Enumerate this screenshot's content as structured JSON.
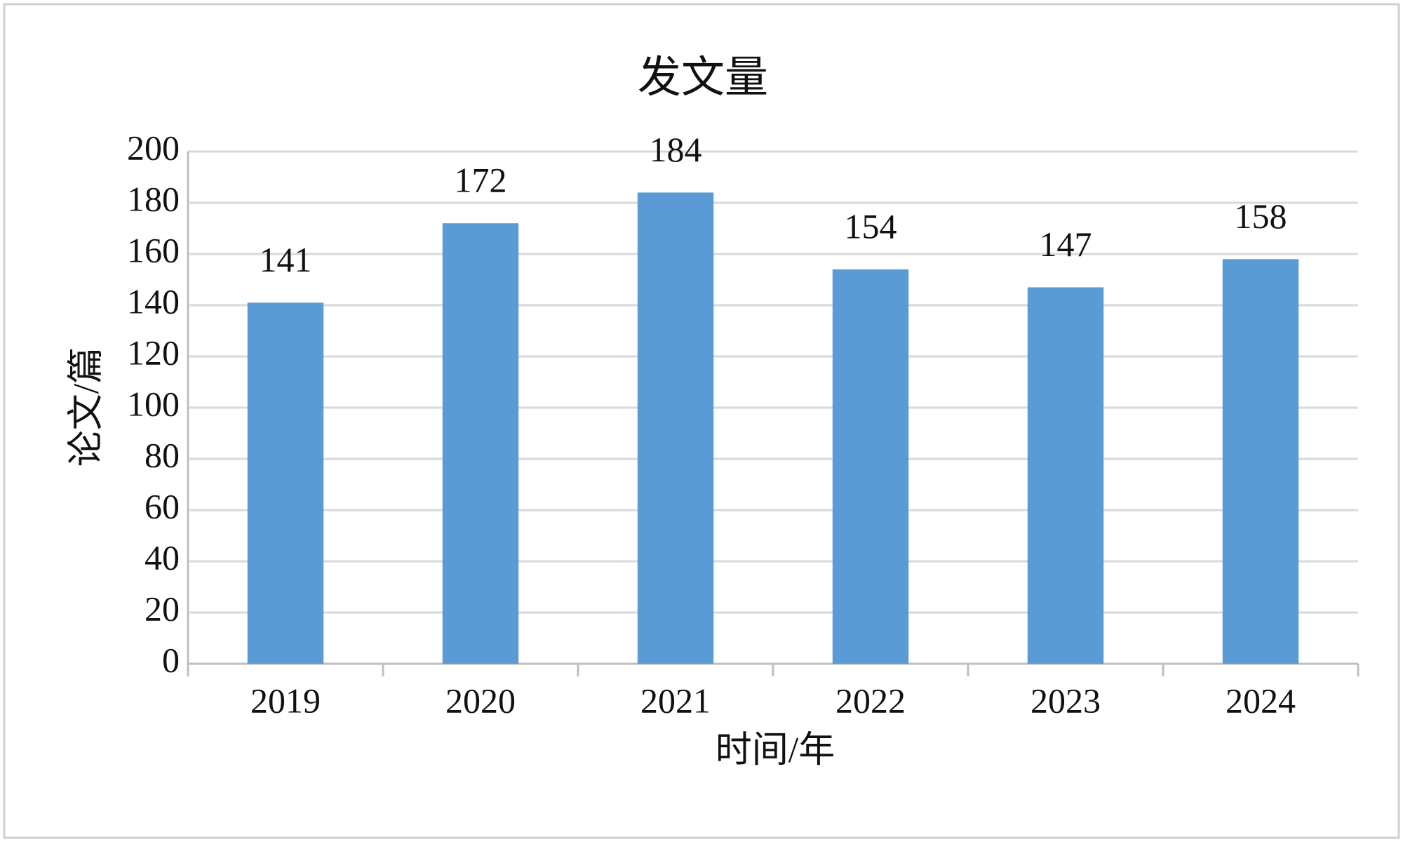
{
  "chart_data": {
    "type": "bar",
    "title": "发文量",
    "x_label": "时间/年",
    "y_label": "论文/篇",
    "categories": [
      "2019",
      "2020",
      "2021",
      "2022",
      "2023",
      "2024"
    ],
    "values": [
      141,
      172,
      184,
      154,
      147,
      158
    ],
    "color": "#5b9bd5",
    "ylim": [
      0,
      200
    ],
    "yticks": [
      0,
      20,
      40,
      60,
      80,
      100,
      120,
      140,
      160,
      180,
      200
    ],
    "grid": true
  }
}
